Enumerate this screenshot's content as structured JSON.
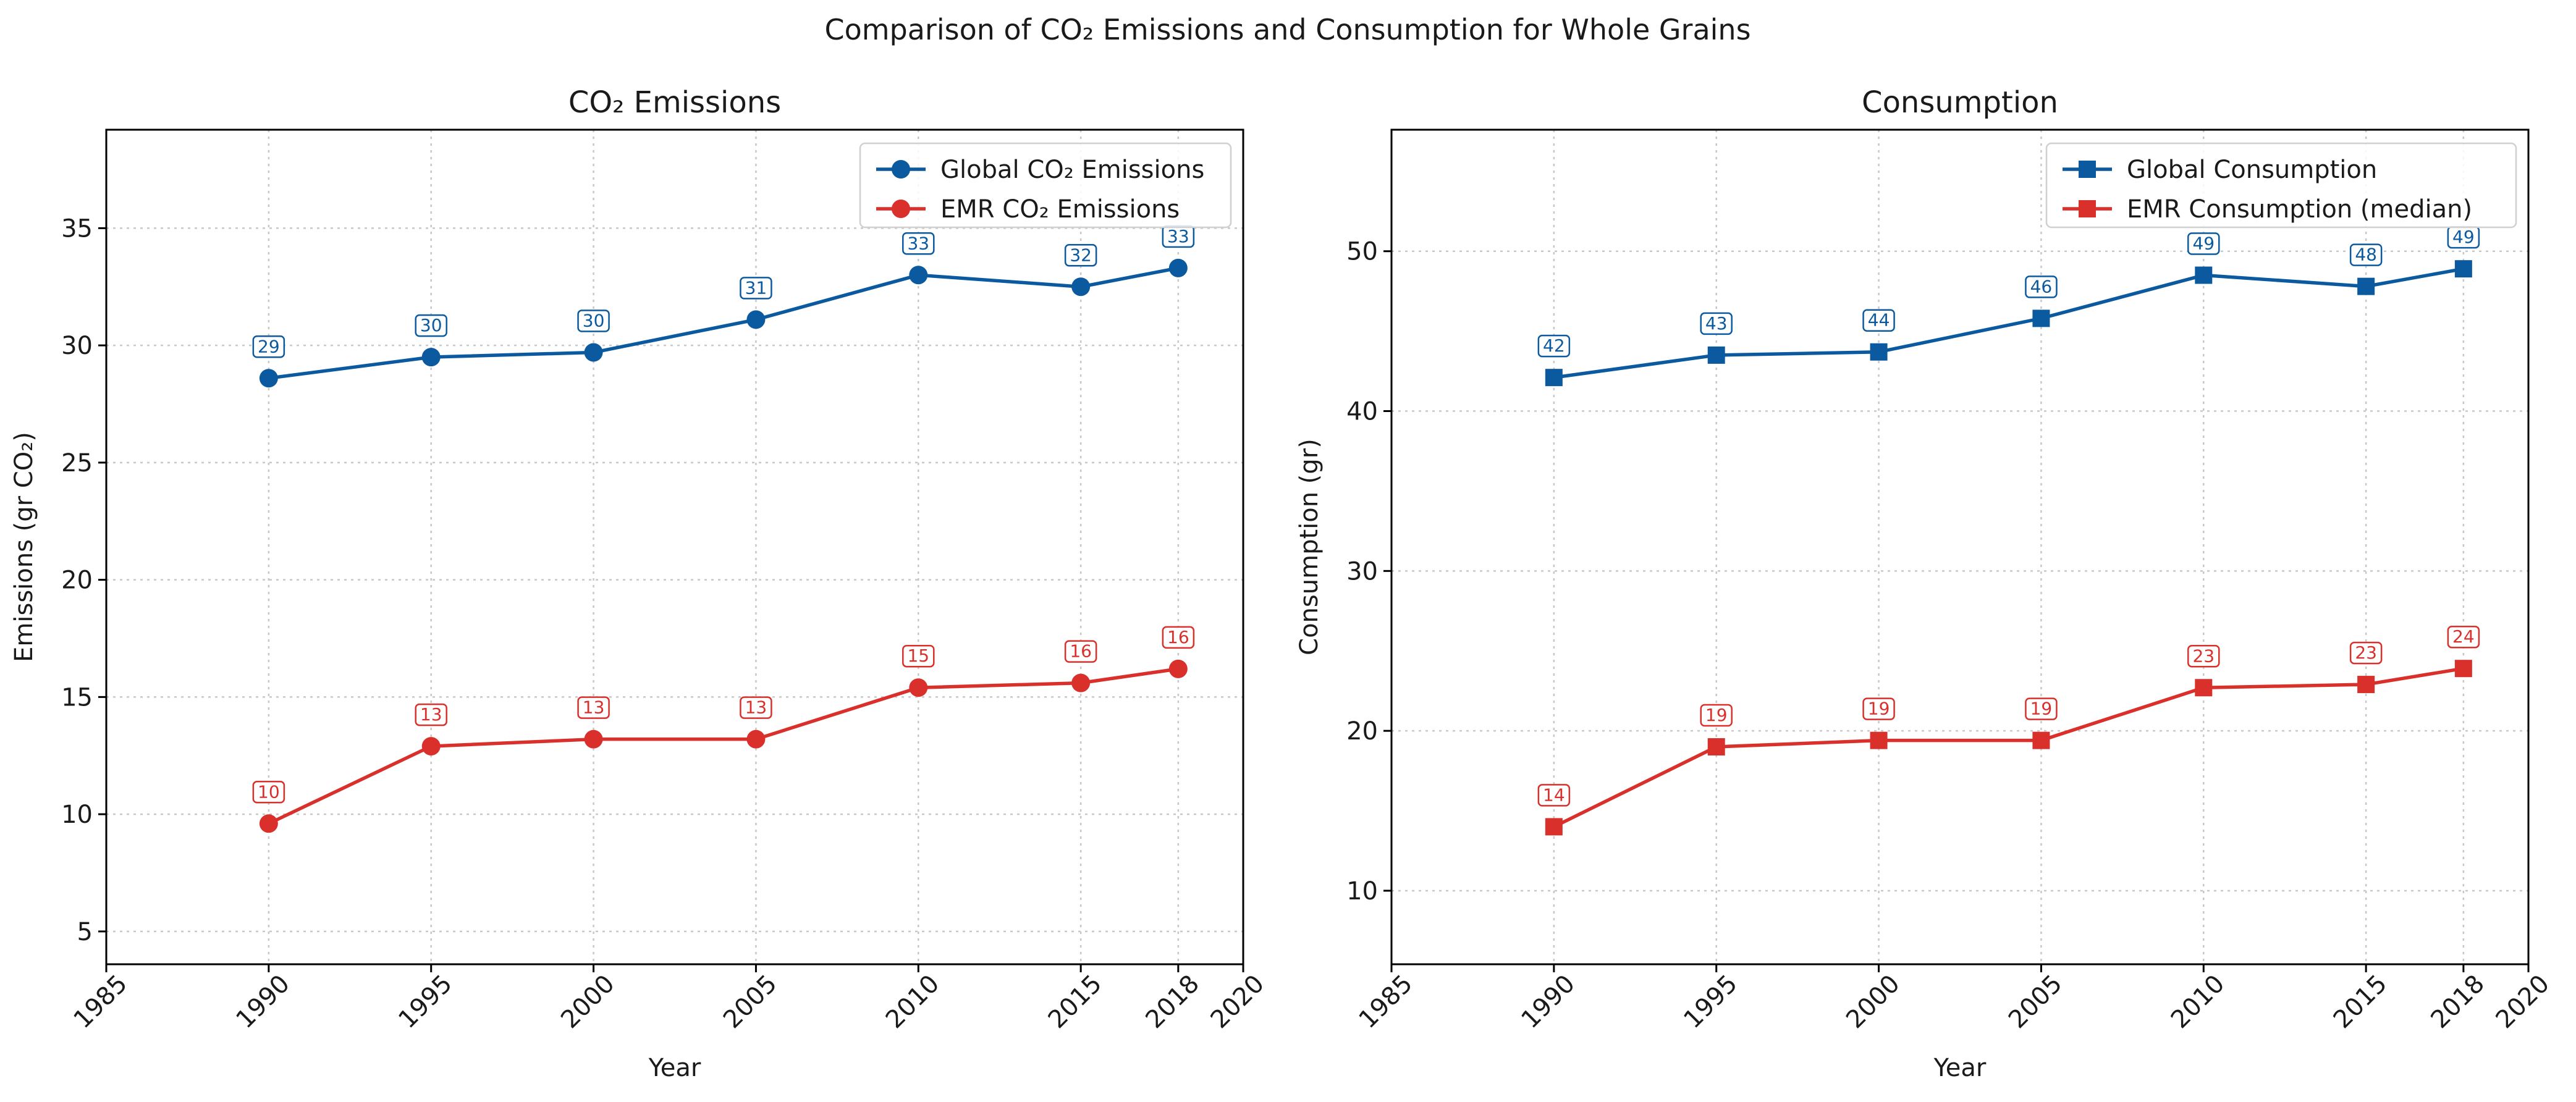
{
  "figure_title": "Comparison of CO₂ Emissions and Consumption for Whole Grains",
  "colors": {
    "global": "#0b5aa0",
    "emr": "#d9302c",
    "grid": "#c8c8c8",
    "axis": "#000000"
  },
  "chart_data": [
    {
      "type": "line",
      "title": "CO₂ Emissions",
      "xlabel": "Year",
      "ylabel": "Emissions (gr CO₂)",
      "xlim": [
        1985,
        2020
      ],
      "ylim": [
        3.6,
        39.2
      ],
      "xticks": [
        "1985",
        "1990",
        "1995",
        "2000",
        "2005",
        "2010",
        "2015",
        "2018",
        "2020"
      ],
      "yticks": [
        5,
        10,
        15,
        20,
        25,
        30,
        35
      ],
      "grid": true,
      "legend_position": "top-right",
      "x": [
        1990,
        1995,
        2000,
        2005,
        2010,
        2015,
        2018
      ],
      "series": [
        {
          "name": "Global CO₂ Emissions",
          "marker": "circle",
          "color": "#0b5aa0",
          "values": [
            28.6,
            29.5,
            29.7,
            31.1,
            33.0,
            32.5,
            33.3
          ],
          "labels": [
            "29",
            "30",
            "30",
            "31",
            "33",
            "32",
            "33"
          ]
        },
        {
          "name": "EMR CO₂ Emissions",
          "marker": "circle",
          "color": "#d9302c",
          "values": [
            9.6,
            12.9,
            13.2,
            13.2,
            15.4,
            15.6,
            16.2
          ],
          "labels": [
            "10",
            "13",
            "13",
            "13",
            "15",
            "16",
            "16"
          ]
        }
      ]
    },
    {
      "type": "line",
      "title": "Consumption",
      "xlabel": "Year",
      "ylabel": "Consumption (gr)",
      "xlim": [
        1985,
        2020
      ],
      "ylim": [
        5.4,
        57.6
      ],
      "xticks": [
        "1985",
        "1990",
        "1995",
        "2000",
        "2005",
        "2010",
        "2015",
        "2018",
        "2020"
      ],
      "yticks": [
        10,
        20,
        30,
        40,
        50
      ],
      "grid": true,
      "legend_position": "top-right",
      "x": [
        1990,
        1995,
        2000,
        2005,
        2010,
        2015,
        2018
      ],
      "series": [
        {
          "name": "Global Consumption",
          "marker": "square",
          "color": "#0b5aa0",
          "values": [
            42.1,
            43.5,
            43.7,
            45.8,
            48.5,
            47.8,
            48.9
          ],
          "labels": [
            "42",
            "43",
            "44",
            "46",
            "49",
            "48",
            "49"
          ]
        },
        {
          "name": "EMR Consumption (median)",
          "marker": "square",
          "color": "#d9302c",
          "values": [
            14.0,
            19.0,
            19.4,
            19.4,
            22.7,
            22.9,
            23.9
          ],
          "labels": [
            "14",
            "19",
            "19",
            "19",
            "23",
            "23",
            "24"
          ]
        }
      ]
    }
  ]
}
